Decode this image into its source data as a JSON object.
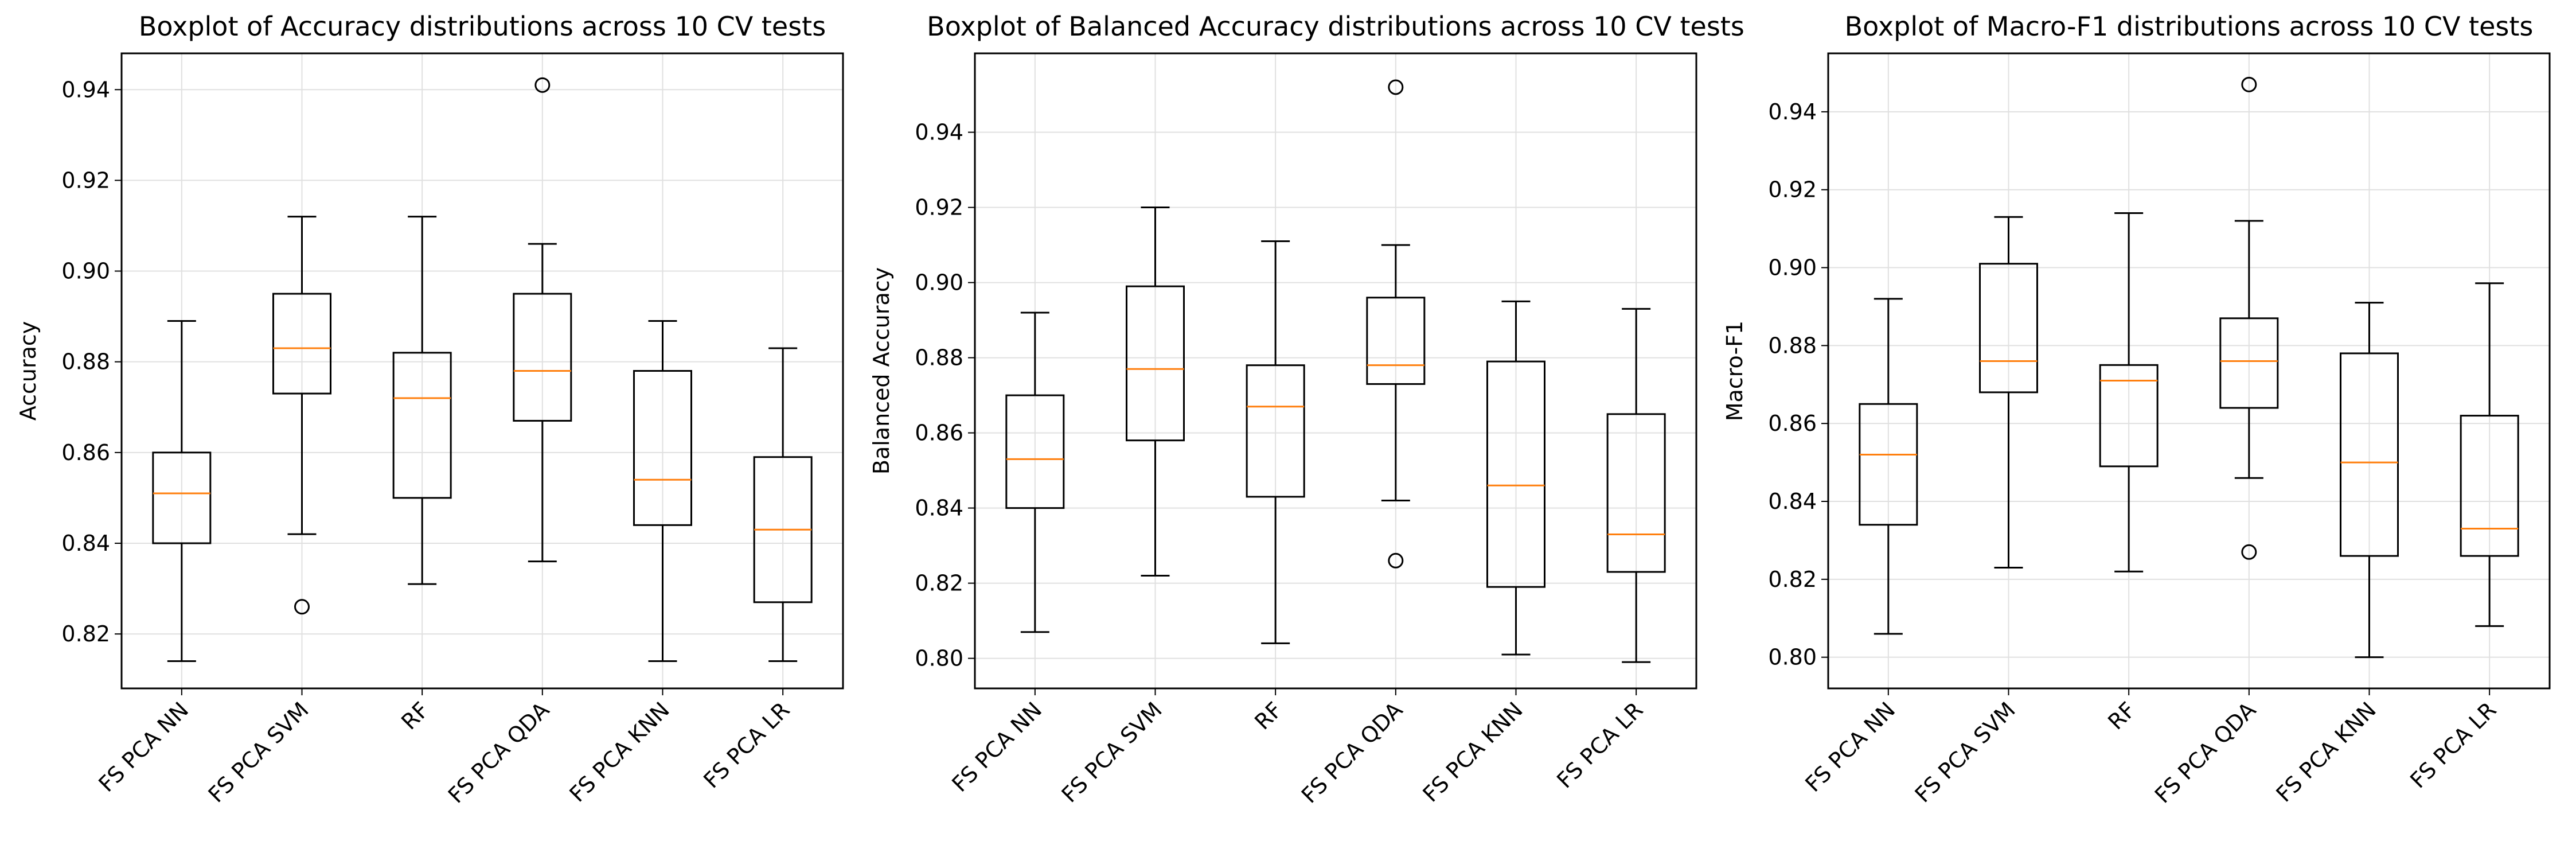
{
  "chart_data": [
    {
      "type": "boxplot",
      "title": "Boxplot of Accuracy distributions across 10 CV tests",
      "xlabel": "",
      "ylabel": "Accuracy",
      "ylim": [
        0.808,
        0.948
      ],
      "yticks": [
        0.82,
        0.84,
        0.86,
        0.88,
        0.9,
        0.92,
        0.94
      ],
      "ytick_labels": [
        "0.82",
        "0.84",
        "0.86",
        "0.88",
        "0.90",
        "0.92",
        "0.94"
      ],
      "grid": true,
      "categories": [
        "FS PCA NN",
        "FS PCA SVM",
        "RF",
        "FS PCA QDA",
        "FS PCA KNN",
        "FS PCA LR"
      ],
      "boxes": [
        {
          "whislo": 0.814,
          "q1": 0.84,
          "med": 0.851,
          "q3": 0.86,
          "whishi": 0.889,
          "fliers": []
        },
        {
          "whislo": 0.842,
          "q1": 0.873,
          "med": 0.883,
          "q3": 0.895,
          "whishi": 0.912,
          "fliers": [
            0.826
          ]
        },
        {
          "whislo": 0.831,
          "q1": 0.85,
          "med": 0.872,
          "q3": 0.882,
          "whishi": 0.912,
          "fliers": []
        },
        {
          "whislo": 0.836,
          "q1": 0.867,
          "med": 0.878,
          "q3": 0.895,
          "whishi": 0.906,
          "fliers": [
            0.941
          ]
        },
        {
          "whislo": 0.814,
          "q1": 0.844,
          "med": 0.854,
          "q3": 0.878,
          "whishi": 0.889,
          "fliers": []
        },
        {
          "whislo": 0.814,
          "q1": 0.827,
          "med": 0.843,
          "q3": 0.859,
          "whishi": 0.883,
          "fliers": []
        }
      ]
    },
    {
      "type": "boxplot",
      "title": "Boxplot of Balanced Accuracy distributions across 10 CV tests",
      "xlabel": "",
      "ylabel": "Balanced Accuracy",
      "ylim": [
        0.792,
        0.961
      ],
      "yticks": [
        0.8,
        0.82,
        0.84,
        0.86,
        0.88,
        0.9,
        0.92,
        0.94
      ],
      "ytick_labels": [
        "0.80",
        "0.82",
        "0.84",
        "0.86",
        "0.88",
        "0.90",
        "0.92",
        "0.94"
      ],
      "grid": true,
      "categories": [
        "FS PCA NN",
        "FS PCA SVM",
        "RF",
        "FS PCA QDA",
        "FS PCA KNN",
        "FS PCA LR"
      ],
      "boxes": [
        {
          "whislo": 0.807,
          "q1": 0.84,
          "med": 0.853,
          "q3": 0.87,
          "whishi": 0.892,
          "fliers": []
        },
        {
          "whislo": 0.822,
          "q1": 0.858,
          "med": 0.877,
          "q3": 0.899,
          "whishi": 0.92,
          "fliers": []
        },
        {
          "whislo": 0.804,
          "q1": 0.843,
          "med": 0.867,
          "q3": 0.878,
          "whishi": 0.911,
          "fliers": []
        },
        {
          "whislo": 0.842,
          "q1": 0.873,
          "med": 0.878,
          "q3": 0.896,
          "whishi": 0.91,
          "fliers": [
            0.826,
            0.952
          ]
        },
        {
          "whislo": 0.801,
          "q1": 0.819,
          "med": 0.846,
          "q3": 0.879,
          "whishi": 0.895,
          "fliers": []
        },
        {
          "whislo": 0.799,
          "q1": 0.823,
          "med": 0.833,
          "q3": 0.865,
          "whishi": 0.893,
          "fliers": []
        }
      ]
    },
    {
      "type": "boxplot",
      "title": "Boxplot of Macro-F1 distributions across 10 CV tests",
      "xlabel": "",
      "ylabel": "Macro-F1",
      "ylim": [
        0.792,
        0.955
      ],
      "yticks": [
        0.8,
        0.82,
        0.84,
        0.86,
        0.88,
        0.9,
        0.92,
        0.94
      ],
      "ytick_labels": [
        "0.80",
        "0.82",
        "0.84",
        "0.86",
        "0.88",
        "0.90",
        "0.92",
        "0.94"
      ],
      "grid": true,
      "categories": [
        "FS PCA NN",
        "FS PCA SVM",
        "RF",
        "FS PCA QDA",
        "FS PCA KNN",
        "FS PCA LR"
      ],
      "boxes": [
        {
          "whislo": 0.806,
          "q1": 0.834,
          "med": 0.852,
          "q3": 0.865,
          "whishi": 0.892,
          "fliers": []
        },
        {
          "whislo": 0.823,
          "q1": 0.868,
          "med": 0.876,
          "q3": 0.901,
          "whishi": 0.913,
          "fliers": []
        },
        {
          "whislo": 0.822,
          "q1": 0.849,
          "med": 0.871,
          "q3": 0.875,
          "whishi": 0.914,
          "fliers": []
        },
        {
          "whislo": 0.846,
          "q1": 0.864,
          "med": 0.876,
          "q3": 0.887,
          "whishi": 0.912,
          "fliers": [
            0.827,
            0.947
          ]
        },
        {
          "whislo": 0.8,
          "q1": 0.826,
          "med": 0.85,
          "q3": 0.878,
          "whishi": 0.891,
          "fliers": []
        },
        {
          "whislo": 0.808,
          "q1": 0.826,
          "med": 0.833,
          "q3": 0.862,
          "whishi": 0.896,
          "fliers": []
        }
      ]
    }
  ],
  "colors": {
    "box_edge": "#000000",
    "median": "#ff7f0e",
    "grid": "#e0e0e0",
    "axes": "#000000",
    "background": "#ffffff"
  }
}
